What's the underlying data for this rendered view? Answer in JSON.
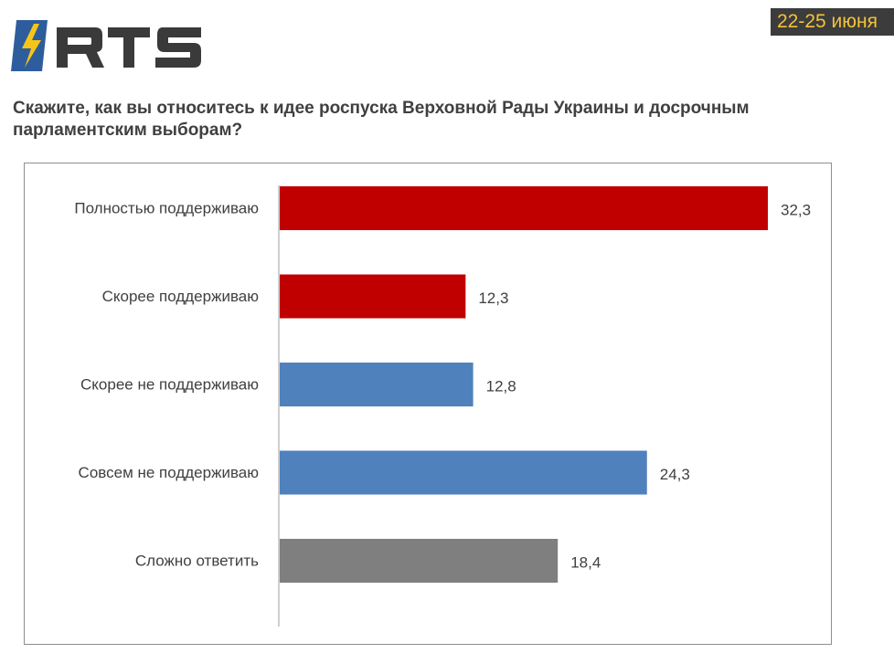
{
  "header": {
    "brand": "RTS",
    "date_badge": "22-25 июня",
    "colors": {
      "badge_bg": "#3c3c3c",
      "badge_text": "#f3c23a",
      "logo_blue": "#2e5d9e",
      "logo_yellow": "#f5c518",
      "logo_dark": "#3a3a3a"
    }
  },
  "question": "Скажите, как вы относитесь к идее роспуска Верховной Рады Украины и досрочным парламентским выборам?",
  "chart_data": {
    "type": "bar",
    "orientation": "horizontal",
    "categories": [
      "Полностью поддерживаю",
      "Скорее поддерживаю",
      "Скорее не поддерживаю",
      "Совсем не поддерживаю",
      "Сложно ответить"
    ],
    "values": [
      32.3,
      12.3,
      12.8,
      24.3,
      18.4
    ],
    "value_labels": [
      "32,3",
      "12,3",
      "12,8",
      "24,3",
      "18,4"
    ],
    "colors": [
      "#c00000",
      "#c00000",
      "#4f81bd",
      "#4f81bd",
      "#7f7f7f"
    ],
    "xlim": [
      0,
      35
    ],
    "grid": false,
    "legend": "none"
  }
}
